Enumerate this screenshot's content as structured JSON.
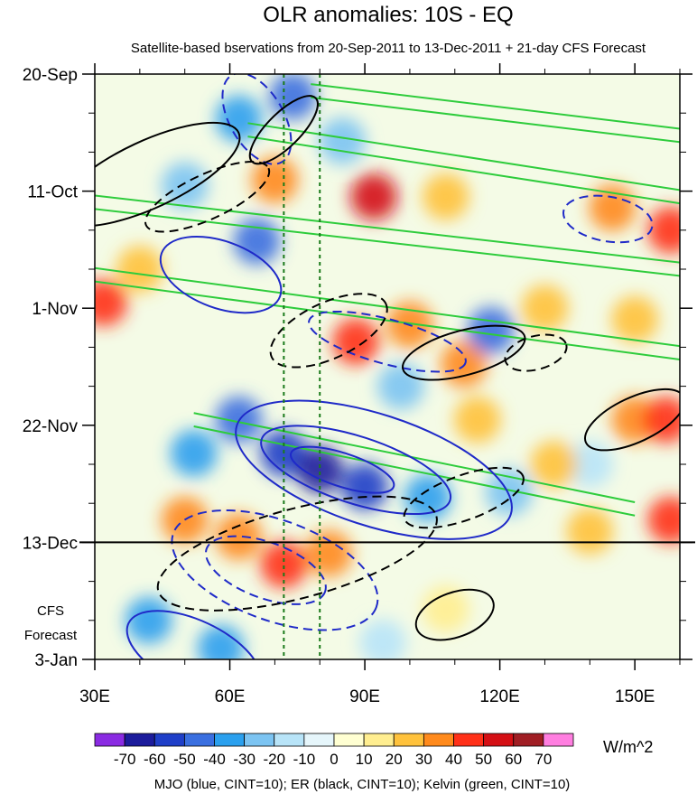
{
  "chart_data": {
    "type": "heatmap",
    "title": "OLR anomalies: 10S - EQ",
    "subtitle": "Satellite-based bservations from 20-Sep-2011 to 13-Dec-2011 + 21-day CFS Forecast",
    "x_axis": {
      "range": [
        30,
        160
      ],
      "ticks": [
        30,
        60,
        90,
        120,
        150
      ],
      "tick_labels": [
        "30E",
        "60E",
        "90E",
        "120E",
        "150E"
      ]
    },
    "y_axis": {
      "range_days": [
        0,
        105
      ],
      "ticks_days": [
        0,
        21,
        42,
        63,
        84,
        105
      ],
      "tick_labels": [
        "20-Sep",
        "11-Oct",
        "1-Nov",
        "22-Nov",
        "13-Dec",
        "3-Jan"
      ]
    },
    "forecast_label": [
      "CFS",
      "Forecast"
    ],
    "observation_end_day": 84,
    "reference_lines_lon": [
      72,
      80
    ],
    "colorbar": {
      "units": "W/m^2",
      "levels": [
        -70,
        -60,
        -50,
        -40,
        -30,
        -20,
        -10,
        0,
        10,
        20,
        30,
        40,
        50,
        60,
        70
      ],
      "level_labels": [
        "-70",
        "-60",
        "-50",
        "-40",
        "-30",
        "-20",
        "-10",
        "0",
        "10",
        "20",
        "30",
        "40",
        "50",
        "60",
        "70"
      ],
      "colors": [
        "#8a2be2",
        "#1c1c9c",
        "#1f3fc8",
        "#3a6fe0",
        "#2ba0ee",
        "#7cc4f2",
        "#b8e4f8",
        "#e6f6fb",
        "#ffffd2",
        "#ffee90",
        "#ffc23c",
        "#ff8a1c",
        "#ff3018",
        "#d40f14",
        "#a01e24",
        "#ff7ee0"
      ]
    },
    "anomaly_blobs": [
      {
        "lon": 62,
        "day": 8,
        "value": -40
      },
      {
        "lon": 74,
        "day": 4,
        "value": -50
      },
      {
        "lon": 50,
        "day": 20,
        "value": -30
      },
      {
        "lon": 66,
        "day": 30,
        "value": -45
      },
      {
        "lon": 85,
        "day": 12,
        "value": -30
      },
      {
        "lon": 70,
        "day": 19,
        "value": 35
      },
      {
        "lon": 92,
        "day": 22,
        "value": 50
      },
      {
        "lon": 108,
        "day": 22,
        "value": 25
      },
      {
        "lon": 145,
        "day": 24,
        "value": 30
      },
      {
        "lon": 158,
        "day": 28,
        "value": 45
      },
      {
        "lon": 40,
        "day": 35,
        "value": 20
      },
      {
        "lon": 32,
        "day": 41,
        "value": 40
      },
      {
        "lon": 88,
        "day": 48,
        "value": 40
      },
      {
        "lon": 100,
        "day": 45,
        "value": 30
      },
      {
        "lon": 112,
        "day": 52,
        "value": 35
      },
      {
        "lon": 130,
        "day": 42,
        "value": 20
      },
      {
        "lon": 150,
        "day": 44,
        "value": 20
      },
      {
        "lon": 118,
        "day": 46,
        "value": -50
      },
      {
        "lon": 98,
        "day": 56,
        "value": -30
      },
      {
        "lon": 62,
        "day": 62,
        "value": -50
      },
      {
        "lon": 72,
        "day": 68,
        "value": -60
      },
      {
        "lon": 80,
        "day": 71,
        "value": -70
      },
      {
        "lon": 90,
        "day": 74,
        "value": -55
      },
      {
        "lon": 104,
        "day": 76,
        "value": -40
      },
      {
        "lon": 52,
        "day": 68,
        "value": -35
      },
      {
        "lon": 122,
        "day": 75,
        "value": -30
      },
      {
        "lon": 140,
        "day": 70,
        "value": -20
      },
      {
        "lon": 150,
        "day": 62,
        "value": 30
      },
      {
        "lon": 157,
        "day": 62,
        "value": 45
      },
      {
        "lon": 132,
        "day": 70,
        "value": 25
      },
      {
        "lon": 115,
        "day": 62,
        "value": 20
      },
      {
        "lon": 50,
        "day": 80,
        "value": 30
      },
      {
        "lon": 62,
        "day": 83,
        "value": 35
      },
      {
        "lon": 72,
        "day": 88,
        "value": 40
      },
      {
        "lon": 82,
        "day": 86,
        "value": 30
      },
      {
        "lon": 140,
        "day": 82,
        "value": 20
      },
      {
        "lon": 158,
        "day": 80,
        "value": 40
      },
      {
        "lon": 42,
        "day": 98,
        "value": -35
      },
      {
        "lon": 58,
        "day": 103,
        "value": -40
      },
      {
        "lon": 108,
        "day": 96,
        "value": 15
      },
      {
        "lon": 94,
        "day": 102,
        "value": -15
      }
    ],
    "contours": {
      "MJO": {
        "color": "#1f2ac8",
        "cint": 10,
        "ellipses": [
          {
            "lon": 66,
            "day": 8,
            "rx": 6,
            "ry": 9,
            "rot": -30,
            "dashed": true
          },
          {
            "lon": 58,
            "day": 36,
            "rx": 14,
            "ry": 6,
            "rot": 20,
            "dashed": false
          },
          {
            "lon": 95,
            "day": 48,
            "rx": 18,
            "ry": 4,
            "rot": 15,
            "dashed": true
          },
          {
            "lon": 92,
            "day": 71,
            "rx": 32,
            "ry": 10,
            "rot": 18,
            "dashed": false
          },
          {
            "lon": 88,
            "day": 71,
            "rx": 22,
            "ry": 6,
            "rot": 18,
            "dashed": false
          },
          {
            "lon": 85,
            "day": 71,
            "rx": 12,
            "ry": 3,
            "rot": 18,
            "dashed": false
          },
          {
            "lon": 70,
            "day": 89,
            "rx": 24,
            "ry": 9,
            "rot": 20,
            "dashed": true
          },
          {
            "lon": 68,
            "day": 89,
            "rx": 14,
            "ry": 5,
            "rot": 20,
            "dashed": true
          },
          {
            "lon": 52,
            "day": 104,
            "rx": 16,
            "ry": 6,
            "rot": 25,
            "dashed": false
          },
          {
            "lon": 144,
            "day": 26,
            "rx": 10,
            "ry": 4,
            "rot": 10,
            "dashed": true
          }
        ]
      },
      "ER": {
        "color": "#000000",
        "cint": 10,
        "ellipses": [
          {
            "lon": 42,
            "day": 18,
            "rx": 22,
            "ry": 6,
            "rot": -25,
            "dashed": false
          },
          {
            "lon": 55,
            "day": 22,
            "rx": 15,
            "ry": 4,
            "rot": -25,
            "dashed": true
          },
          {
            "lon": 82,
            "day": 46,
            "rx": 14,
            "ry": 5,
            "rot": -25,
            "dashed": true
          },
          {
            "lon": 112,
            "day": 50,
            "rx": 14,
            "ry": 4,
            "rot": -15,
            "dashed": false
          },
          {
            "lon": 128,
            "day": 50,
            "rx": 7,
            "ry": 3,
            "rot": -15,
            "dashed": true
          },
          {
            "lon": 112,
            "day": 76,
            "rx": 14,
            "ry": 4,
            "rot": -20,
            "dashed": true
          },
          {
            "lon": 150,
            "day": 62,
            "rx": 12,
            "ry": 4,
            "rot": -25,
            "dashed": false
          },
          {
            "lon": 110,
            "day": 97,
            "rx": 9,
            "ry": 4,
            "rot": -20,
            "dashed": false
          },
          {
            "lon": 75,
            "day": 86,
            "rx": 32,
            "ry": 8,
            "rot": -15,
            "dashed": true
          },
          {
            "lon": 72,
            "day": 10,
            "rx": 10,
            "ry": 3,
            "rot": -45,
            "dashed": false
          }
        ]
      },
      "Kelvin": {
        "color": "#2ecc3c",
        "cint": 10,
        "bands": [
          {
            "lon0": 64,
            "day0": 10,
            "lon1": 160,
            "day1": 22
          },
          {
            "lon0": 30,
            "day0": 23,
            "lon1": 160,
            "day1": 35
          },
          {
            "lon0": 30,
            "day0": 36,
            "lon1": 160,
            "day1": 50
          },
          {
            "lon0": 52,
            "day0": 62,
            "lon1": 150,
            "day1": 78
          },
          {
            "lon0": 78,
            "day0": 3,
            "lon1": 160,
            "day1": 11
          }
        ]
      }
    },
    "footer": "MJO (blue, CINT=10); ER (black, CINT=10); Kelvin (green, CINT=10)"
  }
}
